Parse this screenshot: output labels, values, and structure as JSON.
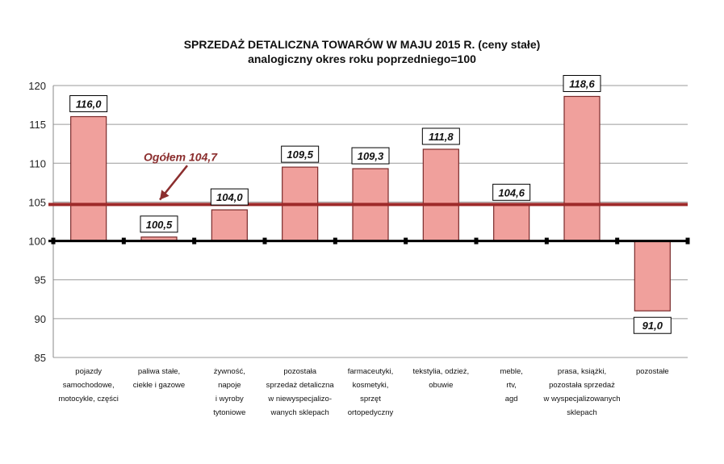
{
  "chart_data": {
    "type": "bar",
    "title": "SPRZEDAŻ DETALICZNA TOWARÓW W MAJU 2015 R. (ceny stałe)",
    "subtitle": "analogiczny okres roku poprzedniego=100",
    "categories": [
      [
        "pojazdy",
        "samochodowe,",
        "motocykle, części"
      ],
      [
        "paliwa stałe,",
        "ciekłe i gazowe"
      ],
      [
        "żywność,",
        "napoje",
        "i wyroby",
        "tytoniowe"
      ],
      [
        "pozostała",
        "sprzedaż detaliczna",
        "w niewyspecjalizo-",
        "wanych sklepach"
      ],
      [
        "farmaceutyki,",
        "kosmetyki,",
        "sprzęt",
        "ortopedyczny"
      ],
      [
        "tekstylia, odzież,",
        "obuwie"
      ],
      [
        "meble,",
        "rtv,",
        "agd"
      ],
      [
        "prasa, książki,",
        "pozostała sprzedaż",
        "w wyspecjalizowanych",
        "sklepach"
      ],
      [
        "pozostałe"
      ]
    ],
    "values": [
      116.0,
      100.5,
      104.0,
      109.5,
      109.3,
      111.8,
      104.6,
      118.6,
      91.0
    ],
    "value_labels": [
      "116,0",
      "100,5",
      "104,0",
      "109,5",
      "109,3",
      "111,8",
      "104,6",
      "118,6",
      "91,0"
    ],
    "baseline": 100,
    "reference_line": {
      "value": 104.7,
      "label": "Ogółem 104,7"
    },
    "ylim": [
      85,
      120
    ],
    "yticks": [
      85,
      90,
      95,
      100,
      105,
      110,
      115,
      120
    ],
    "grid": true,
    "legend": "none",
    "colors": {
      "bar_fill": "#f0a09c",
      "bar_stroke": "#7a2a2a",
      "reference_line": "#9e2a2a",
      "annotation": "#8b2e2e",
      "baseline": "#000000",
      "grid": "#9a9a9a"
    }
  }
}
